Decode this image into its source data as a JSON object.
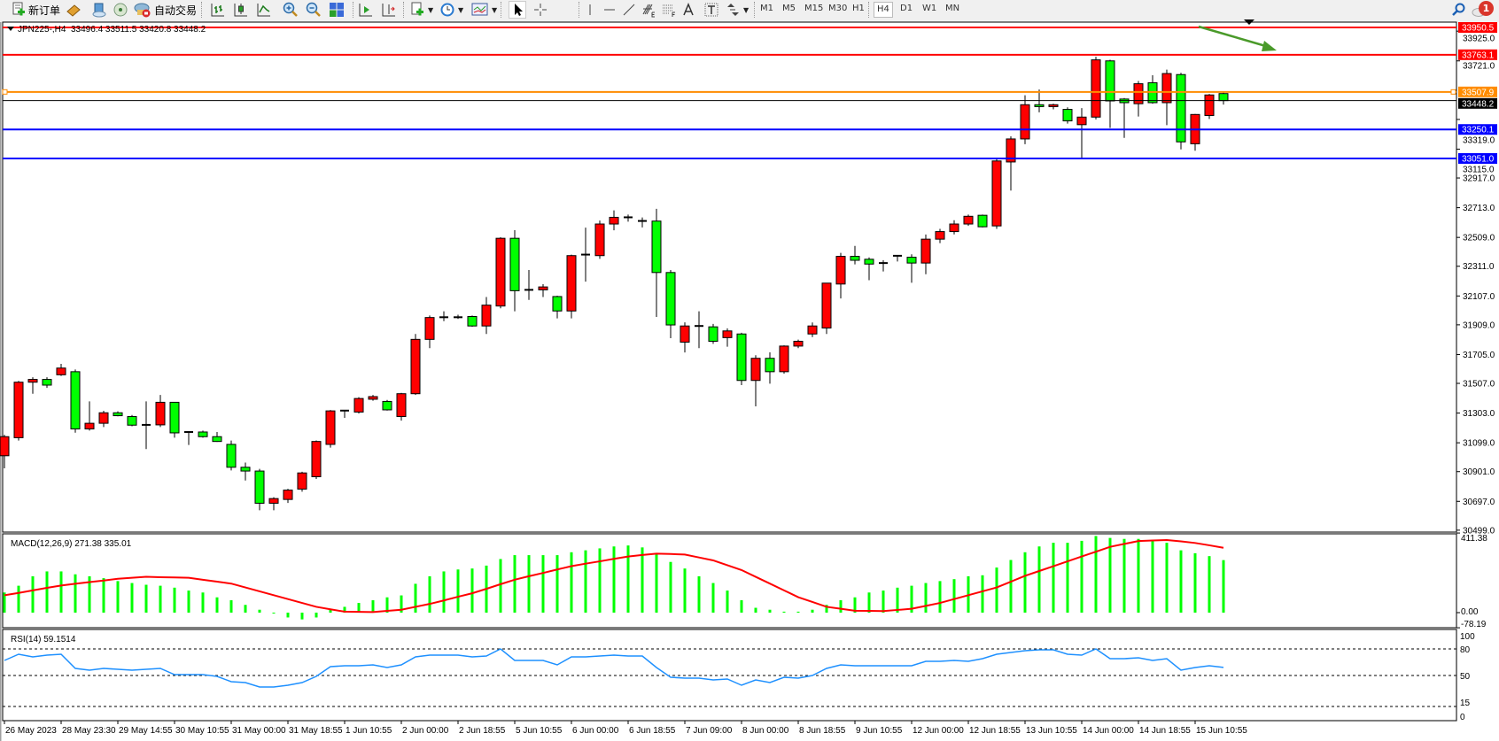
{
  "toolbar": {
    "new_order_label": "新订单",
    "auto_trading_label": "自动交易",
    "timeframes": [
      "M1",
      "M5",
      "M15",
      "M30",
      "H1",
      "H4",
      "D1",
      "W1",
      "MN"
    ],
    "active_timeframe": "H4",
    "notification_count": "1",
    "icons": [
      "new-order-icon",
      "market-watch-icon",
      "navigator-icon",
      "signals-icon",
      "auto-trading-icon",
      "bar-chart-icon",
      "candlestick-icon",
      "line-chart-icon",
      "zoom-in-icon",
      "zoom-out-icon",
      "tile-windows-icon",
      "autoscroll-icon",
      "chart-shift-icon",
      "indicators-icon",
      "periods-icon",
      "templates-icon",
      "cursor-icon",
      "crosshair-icon",
      "vertical-line-icon",
      "horizontal-line-icon",
      "trendline-icon",
      "fibonacci-expansion-icon",
      "fibonacci-fan-icon",
      "text-icon",
      "text-label-icon",
      "arrows-icon",
      "search-icon",
      "notification-icon"
    ]
  },
  "chart_header": {
    "symbol": "JPN225-,H4",
    "ohlc": "33496.4 33511.5 33420.8 33448.2"
  },
  "colors": {
    "bull_candle": "#ff0000",
    "bear_candle": "#00ff00",
    "macd_histogram": "#00ff00",
    "macd_signal": "#ff0000",
    "rsi_line": "#1e90ff",
    "resistance": "#ff0000",
    "pivot": "#ff8c00",
    "support": "#0000ff",
    "annotation_arrow": "#4a9a2a"
  },
  "chart_data": [
    {
      "type": "candlestick",
      "title": "JPN225-,H4",
      "ylim": [
        30487,
        33987
      ],
      "y_ticks": [
        "33925.0",
        "33721.0",
        "33319.0",
        "33115.0",
        "32917.0",
        "32713.0",
        "32509.0",
        "32311.0",
        "32107.0",
        "31909.0",
        "31705.0",
        "31507.0",
        "31303.0",
        "31099.0",
        "30901.0",
        "30697.0",
        "30499.0"
      ],
      "x_tick_labels": [
        "26 May 2023",
        "28 May 23:30",
        "29 May 14:55",
        "30 May 10:55",
        "31 May 00:00",
        "31 May 18:55",
        "1 Jun 10:55",
        "2 Jun 00:00",
        "2 Jun 18:55",
        "5 Jun 10:55",
        "6 Jun 00:00",
        "6 Jun 18:55",
        "7 Jun 09:00",
        "8 Jun 00:00",
        "8 Jun 18:55",
        "9 Jun 10:55",
        "12 Jun 00:00",
        "12 Jun 18:55",
        "13 Jun 10:55",
        "14 Jun 00:00",
        "14 Jun 18:55",
        "15 Jun 10:55"
      ],
      "candles_ohlc": [
        [
          31010,
          31154,
          30924,
          31141
        ],
        [
          31134,
          31524,
          31114,
          31515
        ],
        [
          31515,
          31549,
          31436,
          31534
        ],
        [
          31534,
          31549,
          31476,
          31495
        ],
        [
          31566,
          31641,
          31558,
          31612
        ],
        [
          31587,
          31602,
          31168,
          31194
        ],
        [
          31194,
          31383,
          31183,
          31233
        ],
        [
          31233,
          31319,
          31207,
          31305
        ],
        [
          31305,
          31315,
          31281,
          31285
        ],
        [
          31279,
          31290,
          31212,
          31220
        ],
        [
          31220,
          31383,
          31056,
          31222
        ],
        [
          31222,
          31427,
          31207,
          31377
        ],
        [
          31377,
          31378,
          31134,
          31167
        ],
        [
          31167,
          31178,
          31084,
          31173
        ],
        [
          31173,
          31183,
          31134,
          31141
        ],
        [
          31141,
          31173,
          31105,
          31108
        ],
        [
          31088,
          31114,
          30909,
          30931
        ],
        [
          30931,
          30963,
          30840,
          30905
        ],
        [
          30905,
          30920,
          30636,
          30684
        ],
        [
          30684,
          30725,
          30636,
          30716
        ],
        [
          30710,
          30783,
          30686,
          30774
        ],
        [
          30781,
          30900,
          30763,
          30892
        ],
        [
          30866,
          31115,
          30851,
          31108
        ],
        [
          31088,
          31324,
          31066,
          31318
        ],
        [
          31318,
          31324,
          31270,
          31320
        ],
        [
          31310,
          31412,
          31300,
          31403
        ],
        [
          31398,
          31427,
          31388,
          31416
        ],
        [
          31383,
          31393,
          31320,
          31325
        ],
        [
          31279,
          31442,
          31251,
          31436
        ],
        [
          31436,
          31846,
          31427,
          31809
        ],
        [
          31809,
          31973,
          31749,
          31959
        ],
        [
          31959,
          32002,
          31934,
          31961
        ],
        [
          31961,
          31978,
          31949,
          31959
        ],
        [
          31966,
          31973,
          31895,
          31901
        ],
        [
          31901,
          32100,
          31846,
          32044
        ],
        [
          32038,
          32510,
          32022,
          32503
        ],
        [
          32503,
          32559,
          32002,
          32143
        ],
        [
          32143,
          32285,
          32080,
          32149
        ],
        [
          32149,
          32188,
          32100,
          32169
        ],
        [
          32103,
          32109,
          31953,
          32004
        ],
        [
          32004,
          32391,
          31953,
          32384
        ],
        [
          32384,
          32576,
          32205,
          32391
        ],
        [
          32384,
          32625,
          32362,
          32601
        ],
        [
          32601,
          32695,
          32558,
          32647
        ],
        [
          32647,
          32666,
          32617,
          32640
        ],
        [
          32617,
          32646,
          32578,
          32622
        ],
        [
          32621,
          32705,
          31963,
          32268
        ],
        [
          32268,
          32285,
          31817,
          31908
        ],
        [
          31790,
          31926,
          31719,
          31901
        ],
        [
          31895,
          32002,
          31749,
          31901
        ],
        [
          31895,
          31915,
          31778,
          31796
        ],
        [
          31821,
          31885,
          31759,
          31867
        ],
        [
          31846,
          31854,
          31495,
          31527
        ],
        [
          31527,
          31700,
          31349,
          31679
        ],
        [
          31679,
          31720,
          31505,
          31587
        ],
        [
          31587,
          31768,
          31573,
          31763
        ],
        [
          31763,
          31807,
          31749,
          31796
        ],
        [
          31846,
          31925,
          31825,
          31901
        ],
        [
          31887,
          32197,
          31846,
          32195
        ],
        [
          32189,
          32403,
          32090,
          32379
        ],
        [
          32379,
          32451,
          32324,
          32352
        ],
        [
          32359,
          32372,
          32215,
          32326
        ],
        [
          32333,
          32353,
          32275,
          32329
        ],
        [
          32379,
          32388,
          32344,
          32383
        ],
        [
          32373,
          32393,
          32198,
          32333
        ],
        [
          32333,
          32529,
          32256,
          32497
        ],
        [
          32497,
          32568,
          32470,
          32549
        ],
        [
          32549,
          32627,
          32530,
          32601
        ],
        [
          32601,
          32666,
          32588,
          32654
        ],
        [
          32661,
          32666,
          32578,
          32582
        ],
        [
          32588,
          33047,
          32568,
          33034
        ],
        [
          33027,
          33203,
          32831,
          33185
        ],
        [
          33185,
          33485,
          33149,
          33420
        ],
        [
          33420,
          33524,
          33368,
          33407
        ],
        [
          33407,
          33427,
          33388,
          33420
        ],
        [
          33388,
          33402,
          33290,
          33309
        ],
        [
          33283,
          33397,
          33055,
          33335
        ],
        [
          33335,
          33749,
          33319,
          33728
        ],
        [
          33721,
          33729,
          33261,
          33446
        ],
        [
          33459,
          33466,
          33192,
          33434
        ],
        [
          33427,
          33583,
          33339,
          33564
        ],
        [
          33571,
          33622,
          33427,
          33434
        ],
        [
          33434,
          33661,
          33280,
          33634
        ],
        [
          33627,
          33639,
          33113,
          33165
        ],
        [
          33152,
          33356,
          33104,
          33353
        ],
        [
          33346,
          33494,
          33322,
          33487
        ],
        [
          33496.4,
          33511.5,
          33420.8,
          33448.2
        ]
      ],
      "horizontal_lines": [
        {
          "price": "33950.5",
          "color": "#ff0000"
        },
        {
          "price": "33763.1",
          "color": "#ff0000"
        },
        {
          "price": "33507.9",
          "color": "#ff8c00"
        },
        {
          "price": "33448.2",
          "color": "#000000"
        },
        {
          "price": "33250.1",
          "color": "#0000ff"
        },
        {
          "price": "33051.0",
          "color": "#0000ff"
        }
      ]
    },
    {
      "type": "bar+line",
      "title": "MACD(12,26,9) 271.38 335.01",
      "ylim": [
        -78.19,
        411.38
      ],
      "y_ticks": [
        "411.38",
        "0.00",
        "-78.19"
      ],
      "histogram": [
        104,
        139,
        188,
        213,
        213,
        198,
        188,
        178,
        163,
        153,
        144,
        139,
        129,
        114,
        104,
        79,
        64,
        40,
        15,
        0,
        -25,
        -35,
        -25,
        15,
        30,
        50,
        64,
        79,
        89,
        149,
        188,
        213,
        223,
        228,
        243,
        277,
        297,
        297,
        297,
        297,
        312,
        322,
        332,
        342,
        347,
        337,
        302,
        262,
        228,
        188,
        153,
        114,
        64,
        25,
        15,
        5,
        5,
        15,
        40,
        64,
        79,
        104,
        114,
        129,
        139,
        153,
        163,
        173,
        188,
        193,
        233,
        272,
        312,
        342,
        361,
        361,
        371,
        396,
        386,
        381,
        381,
        376,
        361,
        322,
        307,
        292,
        271.38
      ],
      "signal": [
        90,
        102,
        115,
        128,
        140,
        149,
        158,
        166,
        175,
        180,
        185,
        183,
        182,
        180,
        170,
        160,
        150,
        130,
        110,
        90,
        70,
        50,
        30,
        17,
        5,
        4,
        3,
        9,
        15,
        30,
        45,
        63,
        82,
        100,
        123,
        147,
        170,
        188,
        205,
        223,
        240,
        253,
        265,
        278,
        290,
        298,
        305,
        303,
        300,
        285,
        270,
        245,
        220,
        185,
        150,
        115,
        80,
        55,
        30,
        20,
        10,
        9,
        8,
        14,
        20,
        35,
        50,
        70,
        90,
        110,
        130,
        160,
        190,
        215,
        240,
        265,
        290,
        315,
        340,
        355,
        370,
        373,
        375,
        368,
        360,
        348,
        335.01
      ]
    },
    {
      "type": "line",
      "title": "RSI(14) 59.1514",
      "ylim": [
        0,
        100
      ],
      "y_ticks": [
        "100",
        "80",
        "50",
        "15",
        "0"
      ],
      "levels": [
        80,
        50,
        15
      ],
      "values": [
        67,
        74,
        71,
        73,
        74,
        58,
        56,
        58,
        57,
        56,
        57,
        58,
        51,
        51,
        51,
        49,
        43,
        42,
        37,
        37,
        39,
        42,
        49,
        60,
        61,
        61,
        62,
        59,
        62,
        71,
        73,
        73,
        73,
        71,
        72,
        80,
        67,
        67,
        67,
        62,
        71,
        71,
        72,
        73,
        72,
        72,
        59,
        48,
        47,
        47,
        45,
        46,
        39,
        45,
        42,
        48,
        47,
        50,
        58,
        62,
        61,
        61,
        61,
        61,
        61,
        66,
        66,
        67,
        66,
        69,
        74,
        76,
        78,
        79,
        79,
        74,
        73,
        80,
        69,
        69,
        70,
        67,
        69,
        56,
        59,
        61,
        59.1514
      ]
    }
  ]
}
